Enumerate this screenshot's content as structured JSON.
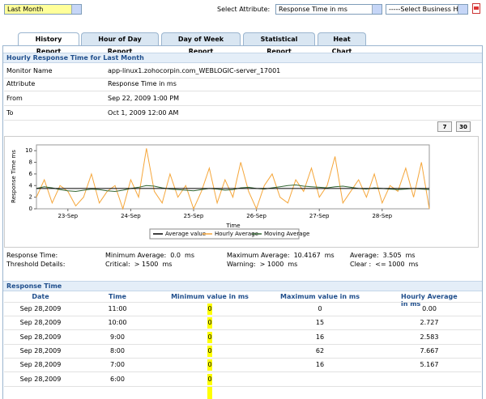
{
  "toolbar": {
    "period": "Last Month",
    "attribute_label": "Select Attribute:",
    "attribute": "Response Time in ms",
    "business_hours": "-----Select Business Ho"
  },
  "tabs": [
    "History Report",
    "Hour of Day Report",
    "Day of Week Report",
    "Statistical Report",
    "Heat Chart"
  ],
  "summary": {
    "title": "Hourly Response Time for Last Month",
    "rows": [
      [
        "Monitor Name",
        "app-linux1.zohocorpin.com_WEBLOGIC-server_17001"
      ],
      [
        "Attribute",
        "Response Time in ms"
      ],
      [
        "From",
        "Sep 22, 2009 1:00 PM"
      ],
      [
        "To",
        "Oct 1, 2009 12:00 AM"
      ]
    ]
  },
  "range_buttons": [
    "7",
    "30"
  ],
  "chart_data": {
    "type": "line",
    "x_label": "Time",
    "y_label": "Response Time ms",
    "categories": [
      null,
      null,
      null,
      null,
      "23-Sep",
      null,
      null,
      null,
      null,
      null,
      null,
      null,
      "24-Sep",
      null,
      null,
      null,
      null,
      null,
      null,
      null,
      "25-Sep",
      null,
      null,
      null,
      null,
      null,
      null,
      null,
      "26-Sep",
      null,
      null,
      null,
      null,
      null,
      null,
      null,
      "27-Sep",
      null,
      null,
      null,
      null,
      null,
      null,
      null,
      "28-Sep",
      null,
      null,
      null,
      null,
      null,
      null
    ],
    "series": [
      {
        "name": "Average value",
        "color": "#000000",
        "values": [
          3.505,
          3.505,
          3.505,
          3.505,
          3.505,
          3.505,
          3.505,
          3.505,
          3.505,
          3.505,
          3.505,
          3.505,
          3.505,
          3.505,
          3.505,
          3.505,
          3.505,
          3.505,
          3.505,
          3.505,
          3.505,
          3.505,
          3.505,
          3.505,
          3.505,
          3.505,
          3.505,
          3.505,
          3.505,
          3.505,
          3.505,
          3.505,
          3.505,
          3.505,
          3.505,
          3.505,
          3.505,
          3.505,
          3.505,
          3.505,
          3.505,
          3.505,
          3.505,
          3.505,
          3.505,
          3.505,
          3.505,
          3.505,
          3.505,
          3.505,
          3.505
        ]
      },
      {
        "name": "Hourly Average",
        "color": "#f5a63a",
        "values": [
          2,
          5,
          1,
          4,
          3,
          0.5,
          2,
          6,
          1,
          3,
          4,
          0,
          5,
          2,
          10.4,
          3,
          1,
          6,
          2,
          4,
          0,
          3,
          7,
          1,
          5,
          2,
          8,
          3,
          0,
          4,
          6,
          2,
          1,
          5,
          3,
          7,
          2,
          4,
          9,
          1,
          3,
          5,
          2,
          6,
          1,
          4,
          3,
          7,
          2,
          8,
          0
        ]
      },
      {
        "name": "Moving Average",
        "color": "#336633",
        "values": [
          3.5,
          3.8,
          3.6,
          3.3,
          3.1,
          3.0,
          3.2,
          3.4,
          3.3,
          3.1,
          3.0,
          3.2,
          3.5,
          3.7,
          4.0,
          3.9,
          3.6,
          3.4,
          3.3,
          3.2,
          3.1,
          3.3,
          3.5,
          3.4,
          3.2,
          3.3,
          3.6,
          3.7,
          3.5,
          3.4,
          3.6,
          3.8,
          4.0,
          4.1,
          3.9,
          3.8,
          3.7,
          3.6,
          3.8,
          3.9,
          3.7,
          3.5,
          3.4,
          3.6,
          3.5,
          3.4,
          3.3,
          3.4,
          3.5,
          3.4,
          3.3
        ]
      }
    ],
    "ylim": [
      0,
      11
    ],
    "yticks": [
      0,
      2,
      4,
      6,
      8,
      10
    ],
    "grid": false,
    "legend": "bottom"
  },
  "stats": {
    "rows": [
      [
        "Response Time:",
        "Minimum Average:  0.0  ms",
        "Maximum Average:  10.4167  ms",
        "Average:  3.505  ms"
      ],
      [
        "Threshold Details:",
        "Critical:  > 1500  ms",
        "Warning:  > 1000  ms",
        "Clear :  <= 1000  ms"
      ]
    ]
  },
  "table": {
    "title": "Response Time",
    "columns": [
      "Date",
      "Time",
      "Minimum value in ms",
      "Maximum value in ms",
      "Hourly Average in ms"
    ],
    "rows": [
      [
        "Sep 28,2009",
        "11:00",
        "0",
        "0",
        "0.00"
      ],
      [
        "Sep 28,2009",
        "10:00",
        "0",
        "15",
        "2.727"
      ],
      [
        "Sep 28,2009",
        "9:00",
        "0",
        "16",
        "2.583"
      ],
      [
        "Sep 28,2009",
        "8:00",
        "0",
        "62",
        "7.667"
      ],
      [
        "Sep 28,2009",
        "7:00",
        "0",
        "16",
        "5.167"
      ],
      [
        "Sep 28,2009",
        "6:00",
        "0"
      ]
    ]
  }
}
